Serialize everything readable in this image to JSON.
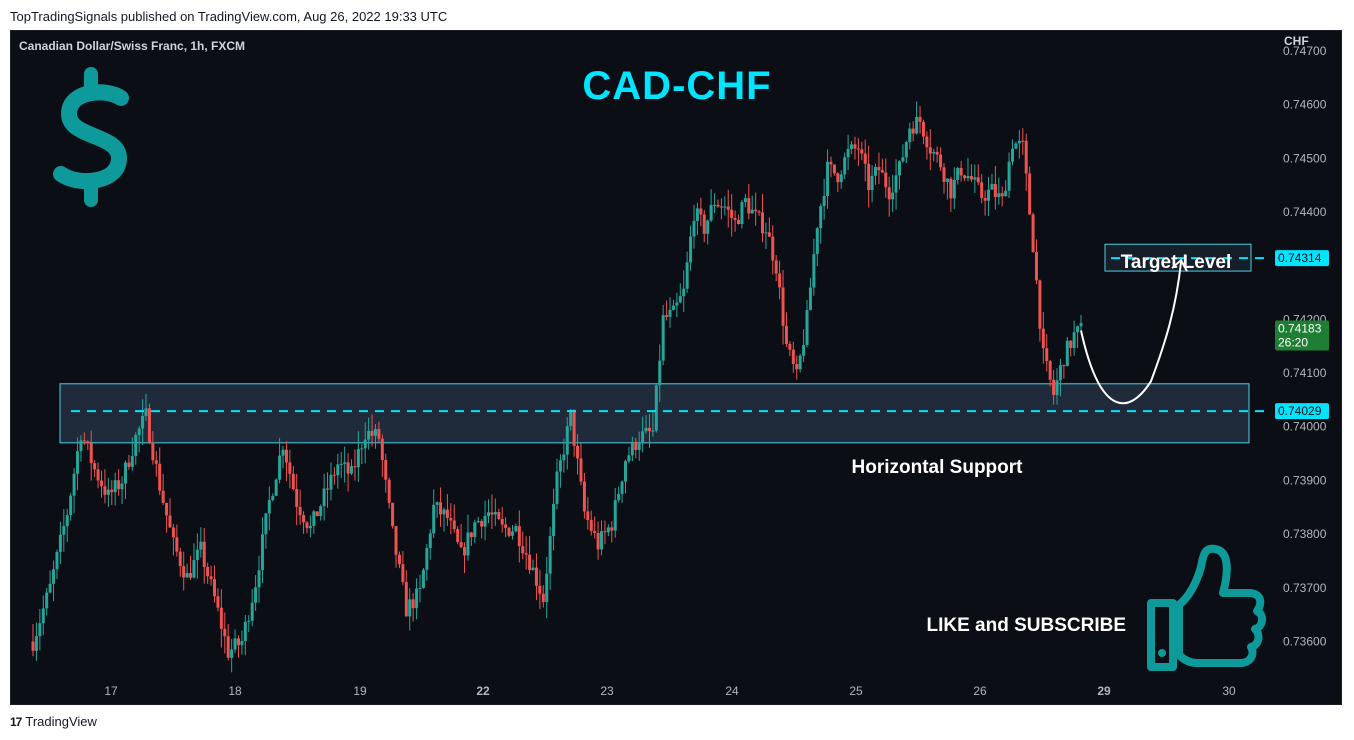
{
  "header": {
    "published": "TopTradingSignals published on TradingView.com, Aug 26, 2022 19:33 UTC"
  },
  "footer": {
    "logo": "17",
    "brand": "TradingView"
  },
  "chart_data": {
    "type": "candlestick",
    "symbol": "Canadian Dollar/Swiss Franc, 1h, FXCM",
    "title": "CAD-CHF",
    "currency": "CHF",
    "ylim": [
      0.7353,
      0.747
    ],
    "y_ticks": [
      "0.74700",
      "0.74600",
      "0.74500",
      "0.74400",
      "0.74200",
      "0.74100",
      "0.74000",
      "0.73900",
      "0.73800",
      "0.73700",
      "0.73600"
    ],
    "x_ticks": [
      "17",
      "18",
      "19",
      "22",
      "23",
      "24",
      "25",
      "26",
      "29",
      "30"
    ],
    "colors": {
      "up": "#26a69a",
      "down": "#ef5350",
      "accent": "#00e5ff",
      "support_box": "#4dd0e1"
    },
    "price_path": [
      [
        0,
        0.736
      ],
      [
        5,
        0.737
      ],
      [
        10,
        0.7384
      ],
      [
        14,
        0.7399
      ],
      [
        18,
        0.7392
      ],
      [
        22,
        0.7387
      ],
      [
        26,
        0.739
      ],
      [
        30,
        0.7398
      ],
      [
        33,
        0.7402
      ],
      [
        37,
        0.7389
      ],
      [
        41,
        0.7378
      ],
      [
        45,
        0.7372
      ],
      [
        49,
        0.7377
      ],
      [
        53,
        0.7368
      ],
      [
        57,
        0.7358
      ],
      [
        61,
        0.736
      ],
      [
        65,
        0.7371
      ],
      [
        69,
        0.7386
      ],
      [
        73,
        0.7397
      ],
      [
        77,
        0.7386
      ],
      [
        81,
        0.7381
      ],
      [
        85,
        0.7387
      ],
      [
        89,
        0.7393
      ],
      [
        93,
        0.7391
      ],
      [
        97,
        0.7399
      ],
      [
        101,
        0.7398
      ],
      [
        105,
        0.738
      ],
      [
        109,
        0.7366
      ],
      [
        113,
        0.7369
      ],
      [
        117,
        0.7385
      ],
      [
        121,
        0.7383
      ],
      [
        125,
        0.7376
      ],
      [
        129,
        0.7382
      ],
      [
        133,
        0.7384
      ],
      [
        137,
        0.7381
      ],
      [
        141,
        0.7381
      ],
      [
        145,
        0.7375
      ],
      [
        149,
        0.7368
      ],
      [
        153,
        0.739
      ],
      [
        157,
        0.7402
      ],
      [
        161,
        0.7384
      ],
      [
        165,
        0.7378
      ],
      [
        169,
        0.7382
      ],
      [
        173,
        0.7394
      ],
      [
        177,
        0.7398
      ],
      [
        181,
        0.7399
      ],
      [
        184,
        0.742
      ],
      [
        187,
        0.7421
      ],
      [
        190,
        0.7425
      ],
      [
        193,
        0.744
      ],
      [
        196,
        0.7437
      ],
      [
        199,
        0.7442
      ],
      [
        202,
        0.7441
      ],
      [
        205,
        0.7438
      ],
      [
        208,
        0.7442
      ],
      [
        211,
        0.7439
      ],
      [
        214,
        0.7437
      ],
      [
        217,
        0.743
      ],
      [
        220,
        0.7415
      ],
      [
        223,
        0.7409
      ],
      [
        226,
        0.742
      ],
      [
        229,
        0.7438
      ],
      [
        232,
        0.7448
      ],
      [
        235,
        0.7447
      ],
      [
        238,
        0.7451
      ],
      [
        241,
        0.7452
      ],
      [
        244,
        0.7445
      ],
      [
        247,
        0.7448
      ],
      [
        250,
        0.7444
      ],
      [
        253,
        0.7448
      ],
      [
        256,
        0.7456
      ],
      [
        259,
        0.7457
      ],
      [
        262,
        0.7452
      ],
      [
        265,
        0.7449
      ],
      [
        268,
        0.7444
      ],
      [
        271,
        0.7448
      ],
      [
        274,
        0.7446
      ],
      [
        277,
        0.7443
      ],
      [
        280,
        0.7444
      ],
      [
        283,
        0.7442
      ],
      [
        286,
        0.7453
      ],
      [
        289,
        0.7452
      ],
      [
        292,
        0.7434
      ],
      [
        295,
        0.7413
      ],
      [
        298,
        0.7406
      ],
      [
        301,
        0.7413
      ],
      [
        304,
        0.7417
      ],
      [
        306,
        0.7418
      ]
    ],
    "annotations": {
      "support_label": "Horizontal Support",
      "target_label": "Target Level",
      "support_level": "0.74029",
      "target_level": "0.74314",
      "last_price": "0.74183",
      "countdown": "26:20",
      "cta": "LIKE and SUBSCRIBE",
      "support_value": 0.74029,
      "target_value": 0.74314,
      "last_value": 0.74183,
      "support_zone": [
        0.7397,
        0.7408
      ],
      "target_zone": [
        0.7429,
        0.7434
      ]
    },
    "icons": [
      "dollar-sign-icon",
      "thumbs-up-icon"
    ]
  }
}
